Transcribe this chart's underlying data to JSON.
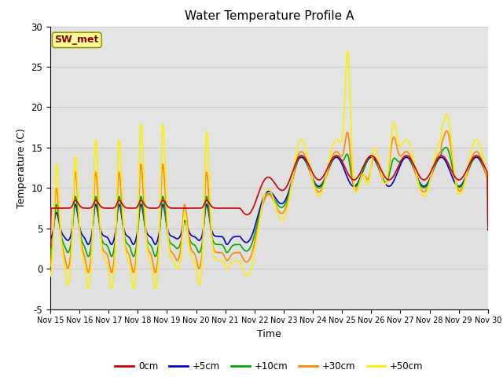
{
  "title": "Water Temperature Profile A",
  "xlabel": "Time",
  "ylabel": "Temperature (C)",
  "ylim": [
    -5,
    30
  ],
  "xlim": [
    0,
    15
  ],
  "background_color": "#ffffff",
  "plot_bg_color": "#e0e0e0",
  "grid_color": "#cccccc",
  "annotation_label": "SW_met",
  "annotation_color": "#8b0000",
  "annotation_bg": "#ffff99",
  "annotation_border": "#999900",
  "colors": {
    "0cm": "#cc0000",
    "+5cm": "#0000cc",
    "+10cm": "#00aa00",
    "+30cm": "#ff8800",
    "+50cm": "#ffee00"
  },
  "x_tick_labels": [
    "Nov 15",
    "Nov 16",
    "Nov 17",
    "Nov 18",
    "Nov 19",
    "Nov 20",
    "Nov 21",
    "Nov 22",
    "Nov 23",
    "Nov 24",
    "Nov 25",
    "Nov 26",
    "Nov 27",
    "Nov 28",
    "Nov 29",
    "Nov 30"
  ],
  "y_ticks": [
    -5,
    0,
    5,
    10,
    15,
    20,
    25,
    30
  ],
  "legend_labels": [
    "0cm",
    "+5cm",
    "+10cm",
    "+30cm",
    "+50cm"
  ]
}
